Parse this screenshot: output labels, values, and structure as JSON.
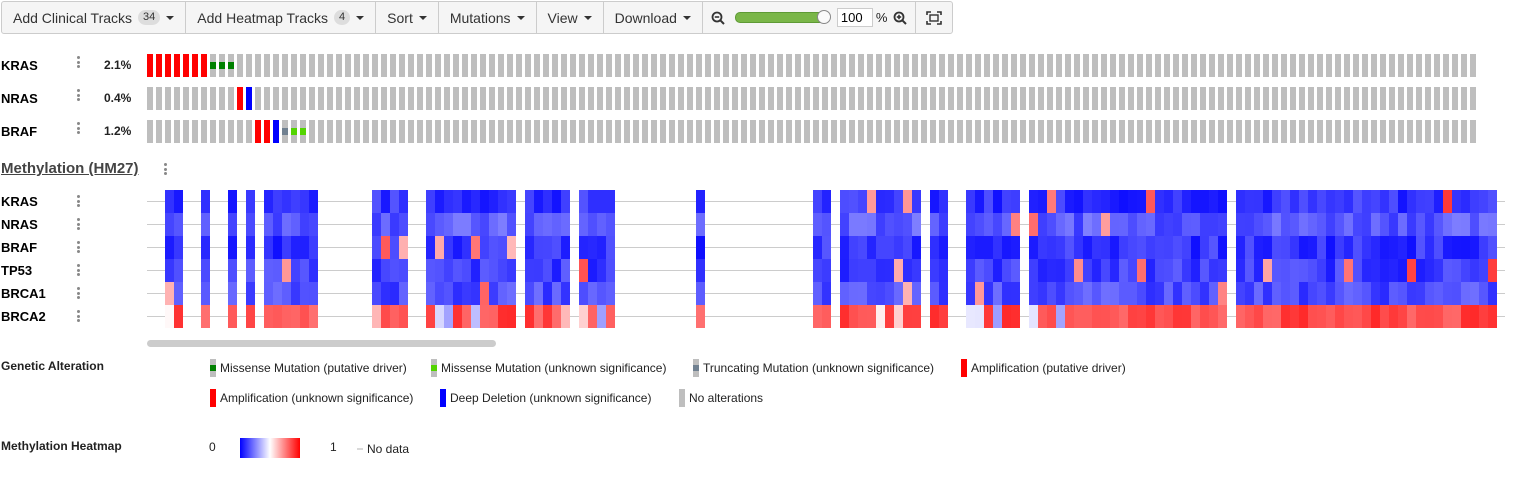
{
  "toolbar": {
    "clinical": {
      "label": "Add Clinical Tracks",
      "count": "34"
    },
    "heatmap": {
      "label": "Add Heatmap Tracks",
      "count": "4"
    },
    "sort": "Sort",
    "mutations": "Mutations",
    "view": "View",
    "download": "Download",
    "zoom_value": "100",
    "zoom_unit": "%",
    "zoom_level": 1.0
  },
  "genes": [
    {
      "name": "KRAS",
      "pct": "2.1%"
    },
    {
      "name": "NRAS",
      "pct": "0.4%"
    },
    {
      "name": "BRAF",
      "pct": "1.2%"
    }
  ],
  "oncoprint": {
    "n_samples": 148,
    "tracks": [
      {
        "gene": "KRAS",
        "alterations": [
          {
            "i": 0,
            "type": "amp_driver"
          },
          {
            "i": 1,
            "type": "amp_driver"
          },
          {
            "i": 2,
            "type": "amp_driver"
          },
          {
            "i": 3,
            "type": "amp_driver"
          },
          {
            "i": 4,
            "type": "amp_driver"
          },
          {
            "i": 5,
            "type": "amp_driver"
          },
          {
            "i": 6,
            "type": "amp_driver"
          },
          {
            "i": 7,
            "type": "missense_driver"
          },
          {
            "i": 8,
            "type": "missense_driver"
          },
          {
            "i": 9,
            "type": "missense_driver"
          }
        ]
      },
      {
        "gene": "NRAS",
        "alterations": [
          {
            "i": 10,
            "type": "amp_driver"
          },
          {
            "i": 11,
            "type": "deep_del"
          }
        ]
      },
      {
        "gene": "BRAF",
        "alterations": [
          {
            "i": 12,
            "type": "amp_driver"
          },
          {
            "i": 13,
            "type": "amp_driver"
          },
          {
            "i": 14,
            "type": "deep_del"
          },
          {
            "i": 15,
            "type": "truncating"
          },
          {
            "i": 16,
            "type": "missense_unknown"
          },
          {
            "i": 17,
            "type": "missense_unknown"
          }
        ]
      }
    ]
  },
  "heatmap": {
    "title": "Methylation (HM27)",
    "genes": [
      "KRAS",
      "NRAS",
      "BRAF",
      "TP53",
      "BRCA1",
      "BRCA2"
    ],
    "n_samples": 150,
    "data_columns": [
      [
        1,
        2
      ],
      [
        5
      ],
      [
        8
      ],
      [
        10
      ],
      [
        12,
        17
      ],
      [
        24,
        27
      ],
      [
        30,
        39
      ],
      [
        41,
        45
      ],
      [
        47,
        50
      ],
      [
        60
      ],
      [
        73,
        74
      ],
      [
        76,
        84
      ],
      [
        86,
        87
      ],
      [
        90,
        95
      ],
      [
        97,
        118
      ],
      [
        120,
        149
      ]
    ],
    "row_levels": {
      "KRAS": 0.1,
      "NRAS": 0.18,
      "BRAF": 0.1,
      "TP53": 0.12,
      "BRCA1": 0.15,
      "BRCA2": 0.85
    }
  },
  "legend": {
    "genetic_title": "Genetic Alteration",
    "items": [
      {
        "label": "Missense Mutation (putative driver)",
        "type": "missense_driver"
      },
      {
        "label": "Missense Mutation (unknown significance)",
        "type": "missense_unknown"
      },
      {
        "label": "Truncating Mutation (unknown significance)",
        "type": "truncating"
      },
      {
        "label": "Amplification (putative driver)",
        "type": "amp_driver"
      },
      {
        "label": "Amplification (unknown significance)",
        "type": "amp_unknown"
      },
      {
        "label": "Deep Deletion (unknown significance)",
        "type": "deep_del"
      },
      {
        "label": "No alterations",
        "type": "none"
      }
    ],
    "methylation_title": "Methylation Heatmap",
    "scale_min": "0",
    "scale_max": "1",
    "no_data": "No data"
  },
  "colors": {
    "gray": "#bebebe",
    "amp": "#ff0000",
    "del": "#0000ff",
    "missense_driver": "#008000",
    "missense_unknown": "#53d400",
    "truncating": "#708090"
  }
}
